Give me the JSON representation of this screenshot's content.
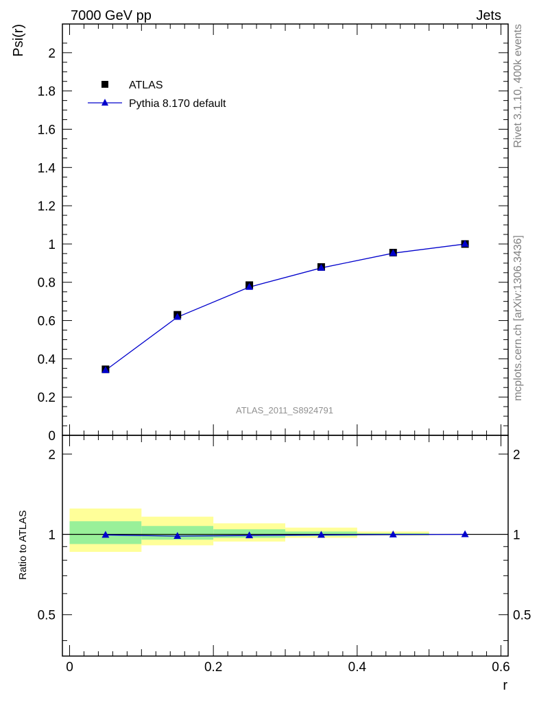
{
  "header": {
    "left": "7000 GeV pp",
    "right": "Jets"
  },
  "side_labels": {
    "top": "Rivet 3.1.10,  400k events",
    "bottom": "mcplots.cern.ch [arXiv:1306.3436]"
  },
  "watermark": "ATLAS_2011_S8924791",
  "colors": {
    "data": "#000000",
    "mc": "#0000cc",
    "band_inner": "#99f099",
    "band_outer": "#ffff99"
  },
  "chart_data": [
    {
      "type": "line",
      "panel": "main",
      "xlabel": "",
      "ylabel": "Psi(r)",
      "xlim": [
        -0.01,
        0.61
      ],
      "ylim": [
        0,
        2.15
      ],
      "yticks": [
        0,
        0.2,
        0.4,
        0.6,
        0.8,
        1,
        1.2,
        1.4,
        1.6,
        1.8,
        2
      ],
      "ytick_labels": [
        "0",
        "0.2",
        "0.4",
        "0.6",
        "0.8",
        "1",
        "1.2",
        "1.4",
        "1.6",
        "1.8",
        "2"
      ],
      "legend_placement": "top-left",
      "series": [
        {
          "name": "ATLAS",
          "marker": "square",
          "x": [
            0.05,
            0.15,
            0.25,
            0.35,
            0.45,
            0.55
          ],
          "values": [
            0.345,
            0.63,
            0.785,
            0.88,
            0.955,
            1.0
          ]
        },
        {
          "name": "Pythia 8.170 default",
          "marker": "triangle",
          "x": [
            0.05,
            0.15,
            0.25,
            0.35,
            0.45,
            0.55
          ],
          "values": [
            0.34,
            0.618,
            0.775,
            0.875,
            0.952,
            1.0
          ]
        }
      ]
    },
    {
      "type": "line",
      "panel": "ratio",
      "xlabel": "r",
      "ylabel": "Ratio to ATLAS",
      "xlim": [
        -0.01,
        0.61
      ],
      "ylim": [
        0.35,
        2.35
      ],
      "log_y": true,
      "xticks": [
        0,
        0.2,
        0.4,
        0.6
      ],
      "xtick_labels": [
        "0",
        "0.2",
        "0.4",
        "0.6"
      ],
      "yticks": [
        0.5,
        1,
        2
      ],
      "ytick_labels": [
        "0.5",
        "1",
        "2"
      ],
      "bins": [
        [
          0,
          0.1
        ],
        [
          0.1,
          0.2
        ],
        [
          0.2,
          0.3
        ],
        [
          0.3,
          0.4
        ],
        [
          0.4,
          0.5
        ]
      ],
      "band_inner": [
        [
          0.92,
          1.12
        ],
        [
          0.955,
          1.075
        ],
        [
          0.97,
          1.045
        ],
        [
          0.985,
          1.025
        ],
        [
          0.993,
          1.01
        ]
      ],
      "band_outer": [
        [
          0.86,
          1.25
        ],
        [
          0.91,
          1.165
        ],
        [
          0.94,
          1.1
        ],
        [
          0.97,
          1.06
        ],
        [
          0.99,
          1.025
        ]
      ],
      "series": [
        {
          "name": "Pythia 8.170 default",
          "x": [
            0.05,
            0.15,
            0.25,
            0.35,
            0.45,
            0.55
          ],
          "values": [
            0.995,
            0.985,
            0.99,
            0.995,
            0.998,
            1.0
          ]
        }
      ]
    }
  ]
}
